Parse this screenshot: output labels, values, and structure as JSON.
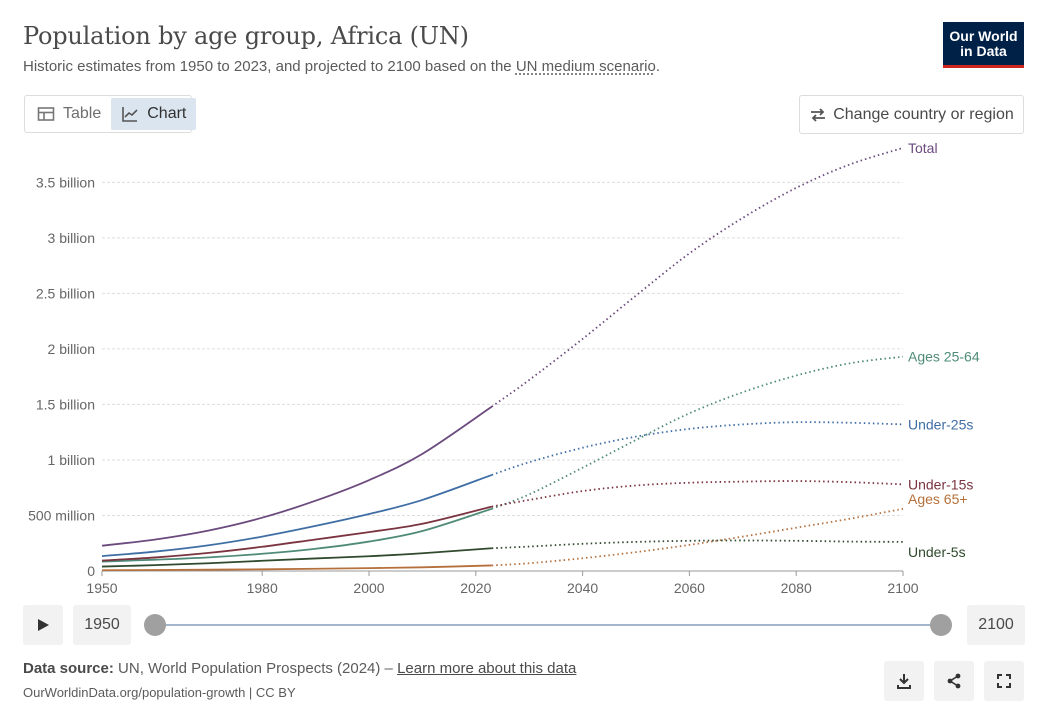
{
  "header": {
    "title": "Population by age group, Africa (UN)",
    "subtitle_prefix": "Historic estimates from 1950 to 2023, and projected to 2100 based on the ",
    "subtitle_link": "UN medium scenario",
    "subtitle_suffix": ".",
    "logo_line1": "Our World",
    "logo_line2": "in Data"
  },
  "tabs": [
    {
      "label": "Table",
      "icon": "table-icon",
      "active": false
    },
    {
      "label": "Chart",
      "icon": "line-chart-icon",
      "active": true
    }
  ],
  "change_button": {
    "label": "Change country or region",
    "icon": "swap-arrows-icon"
  },
  "timeline": {
    "start_label": "1950",
    "end_label": "2100"
  },
  "footer": {
    "source_label": "Data source:",
    "source_text": " UN, World Population Prospects (2024) – ",
    "learn_more": "Learn more about this data",
    "credit": "OurWorldinData.org/population-growth | CC BY"
  },
  "colors": {
    "Total": "#6b4a7e",
    "Ages 25-64": "#4f8b78",
    "Under-25s": "#3f6ea5",
    "Under-15s": "#7a3440",
    "Ages 65+": "#b5703c",
    "Under-5s": "#2f4a2c"
  },
  "chart_data": {
    "type": "line",
    "title": "Population by age group, Africa (UN)",
    "xlim": [
      1950,
      2100
    ],
    "ylim": [
      0,
      3800000000
    ],
    "x_ticks": [
      1950,
      1980,
      2000,
      2020,
      2040,
      2060,
      2080,
      2100
    ],
    "x_tick_labels": [
      "1950",
      "1980",
      "2000",
      "2020",
      "2040",
      "2060",
      "2080",
      "2100"
    ],
    "y_ticks": [
      0,
      500000000,
      1000000000,
      1500000000,
      2000000000,
      2500000000,
      3000000000,
      3500000000
    ],
    "y_tick_labels": [
      "0",
      "500 million",
      "1 billion",
      "1.5 billion",
      "2 billion",
      "2.5 billion",
      "3 billion",
      "3.5 billion"
    ],
    "grid": "horizontal-dotted",
    "projection_start": 2023,
    "legend": "end-of-line labels",
    "series": [
      {
        "name": "Total",
        "historic": [
          [
            1950,
            228000000
          ],
          [
            1960,
            284000000
          ],
          [
            1970,
            365000000
          ],
          [
            1980,
            480000000
          ],
          [
            1990,
            633000000
          ],
          [
            2000,
            818000000
          ],
          [
            2010,
            1055000000
          ],
          [
            2023,
            1480000000
          ]
        ],
        "projected": [
          [
            2023,
            1480000000
          ],
          [
            2030,
            1720000000
          ],
          [
            2040,
            2090000000
          ],
          [
            2050,
            2480000000
          ],
          [
            2060,
            2860000000
          ],
          [
            2070,
            3180000000
          ],
          [
            2080,
            3450000000
          ],
          [
            2090,
            3660000000
          ],
          [
            2100,
            3810000000
          ]
        ]
      },
      {
        "name": "Ages 25-64",
        "historic": [
          [
            1950,
            85000000
          ],
          [
            1960,
            102000000
          ],
          [
            1970,
            123000000
          ],
          [
            1980,
            155000000
          ],
          [
            1990,
            200000000
          ],
          [
            2000,
            265000000
          ],
          [
            2010,
            360000000
          ],
          [
            2023,
            560000000
          ]
        ],
        "projected": [
          [
            2023,
            560000000
          ],
          [
            2030,
            690000000
          ],
          [
            2040,
            930000000
          ],
          [
            2050,
            1180000000
          ],
          [
            2060,
            1420000000
          ],
          [
            2070,
            1610000000
          ],
          [
            2080,
            1760000000
          ],
          [
            2090,
            1870000000
          ],
          [
            2100,
            1930000000
          ]
        ]
      },
      {
        "name": "Under-25s",
        "historic": [
          [
            1950,
            134000000
          ],
          [
            1960,
            175000000
          ],
          [
            1970,
            232000000
          ],
          [
            1980,
            310000000
          ],
          [
            1990,
            406000000
          ],
          [
            2000,
            513000000
          ],
          [
            2010,
            640000000
          ],
          [
            2023,
            865000000
          ]
        ],
        "projected": [
          [
            2023,
            865000000
          ],
          [
            2030,
            980000000
          ],
          [
            2040,
            1110000000
          ],
          [
            2050,
            1210000000
          ],
          [
            2060,
            1280000000
          ],
          [
            2070,
            1320000000
          ],
          [
            2080,
            1340000000
          ],
          [
            2090,
            1335000000
          ],
          [
            2100,
            1320000000
          ]
        ]
      },
      {
        "name": "Under-15s",
        "historic": [
          [
            1950,
            94000000
          ],
          [
            1960,
            122000000
          ],
          [
            1970,
            163000000
          ],
          [
            1980,
            218000000
          ],
          [
            1990,
            284000000
          ],
          [
            2000,
            350000000
          ],
          [
            2010,
            425000000
          ],
          [
            2023,
            580000000
          ]
        ],
        "projected": [
          [
            2023,
            580000000
          ],
          [
            2030,
            640000000
          ],
          [
            2040,
            720000000
          ],
          [
            2050,
            770000000
          ],
          [
            2060,
            795000000
          ],
          [
            2070,
            805000000
          ],
          [
            2080,
            810000000
          ],
          [
            2090,
            800000000
          ],
          [
            2100,
            780000000
          ]
        ]
      },
      {
        "name": "Ages 65+",
        "historic": [
          [
            1950,
            7000000
          ],
          [
            1960,
            9000000
          ],
          [
            1970,
            12000000
          ],
          [
            1980,
            15000000
          ],
          [
            1990,
            20000000
          ],
          [
            2000,
            26000000
          ],
          [
            2010,
            33000000
          ],
          [
            2023,
            50000000
          ]
        ],
        "projected": [
          [
            2023,
            50000000
          ],
          [
            2030,
            70000000
          ],
          [
            2040,
            115000000
          ],
          [
            2050,
            170000000
          ],
          [
            2060,
            235000000
          ],
          [
            2070,
            310000000
          ],
          [
            2080,
            390000000
          ],
          [
            2090,
            470000000
          ],
          [
            2100,
            560000000
          ]
        ]
      },
      {
        "name": "Under-5s",
        "historic": [
          [
            1950,
            40000000
          ],
          [
            1960,
            53000000
          ],
          [
            1970,
            70000000
          ],
          [
            1980,
            92000000
          ],
          [
            1990,
            113000000
          ],
          [
            2000,
            133000000
          ],
          [
            2010,
            160000000
          ],
          [
            2023,
            205000000
          ]
        ],
        "projected": [
          [
            2023,
            205000000
          ],
          [
            2030,
            220000000
          ],
          [
            2040,
            245000000
          ],
          [
            2050,
            262000000
          ],
          [
            2060,
            272000000
          ],
          [
            2070,
            275000000
          ],
          [
            2080,
            272000000
          ],
          [
            2090,
            265000000
          ],
          [
            2100,
            262000000
          ]
        ]
      }
    ],
    "end_labels": [
      "Total",
      "Ages 25-64",
      "Under-25s",
      "Under-15s",
      "Ages 65+",
      "Under-5s"
    ]
  }
}
